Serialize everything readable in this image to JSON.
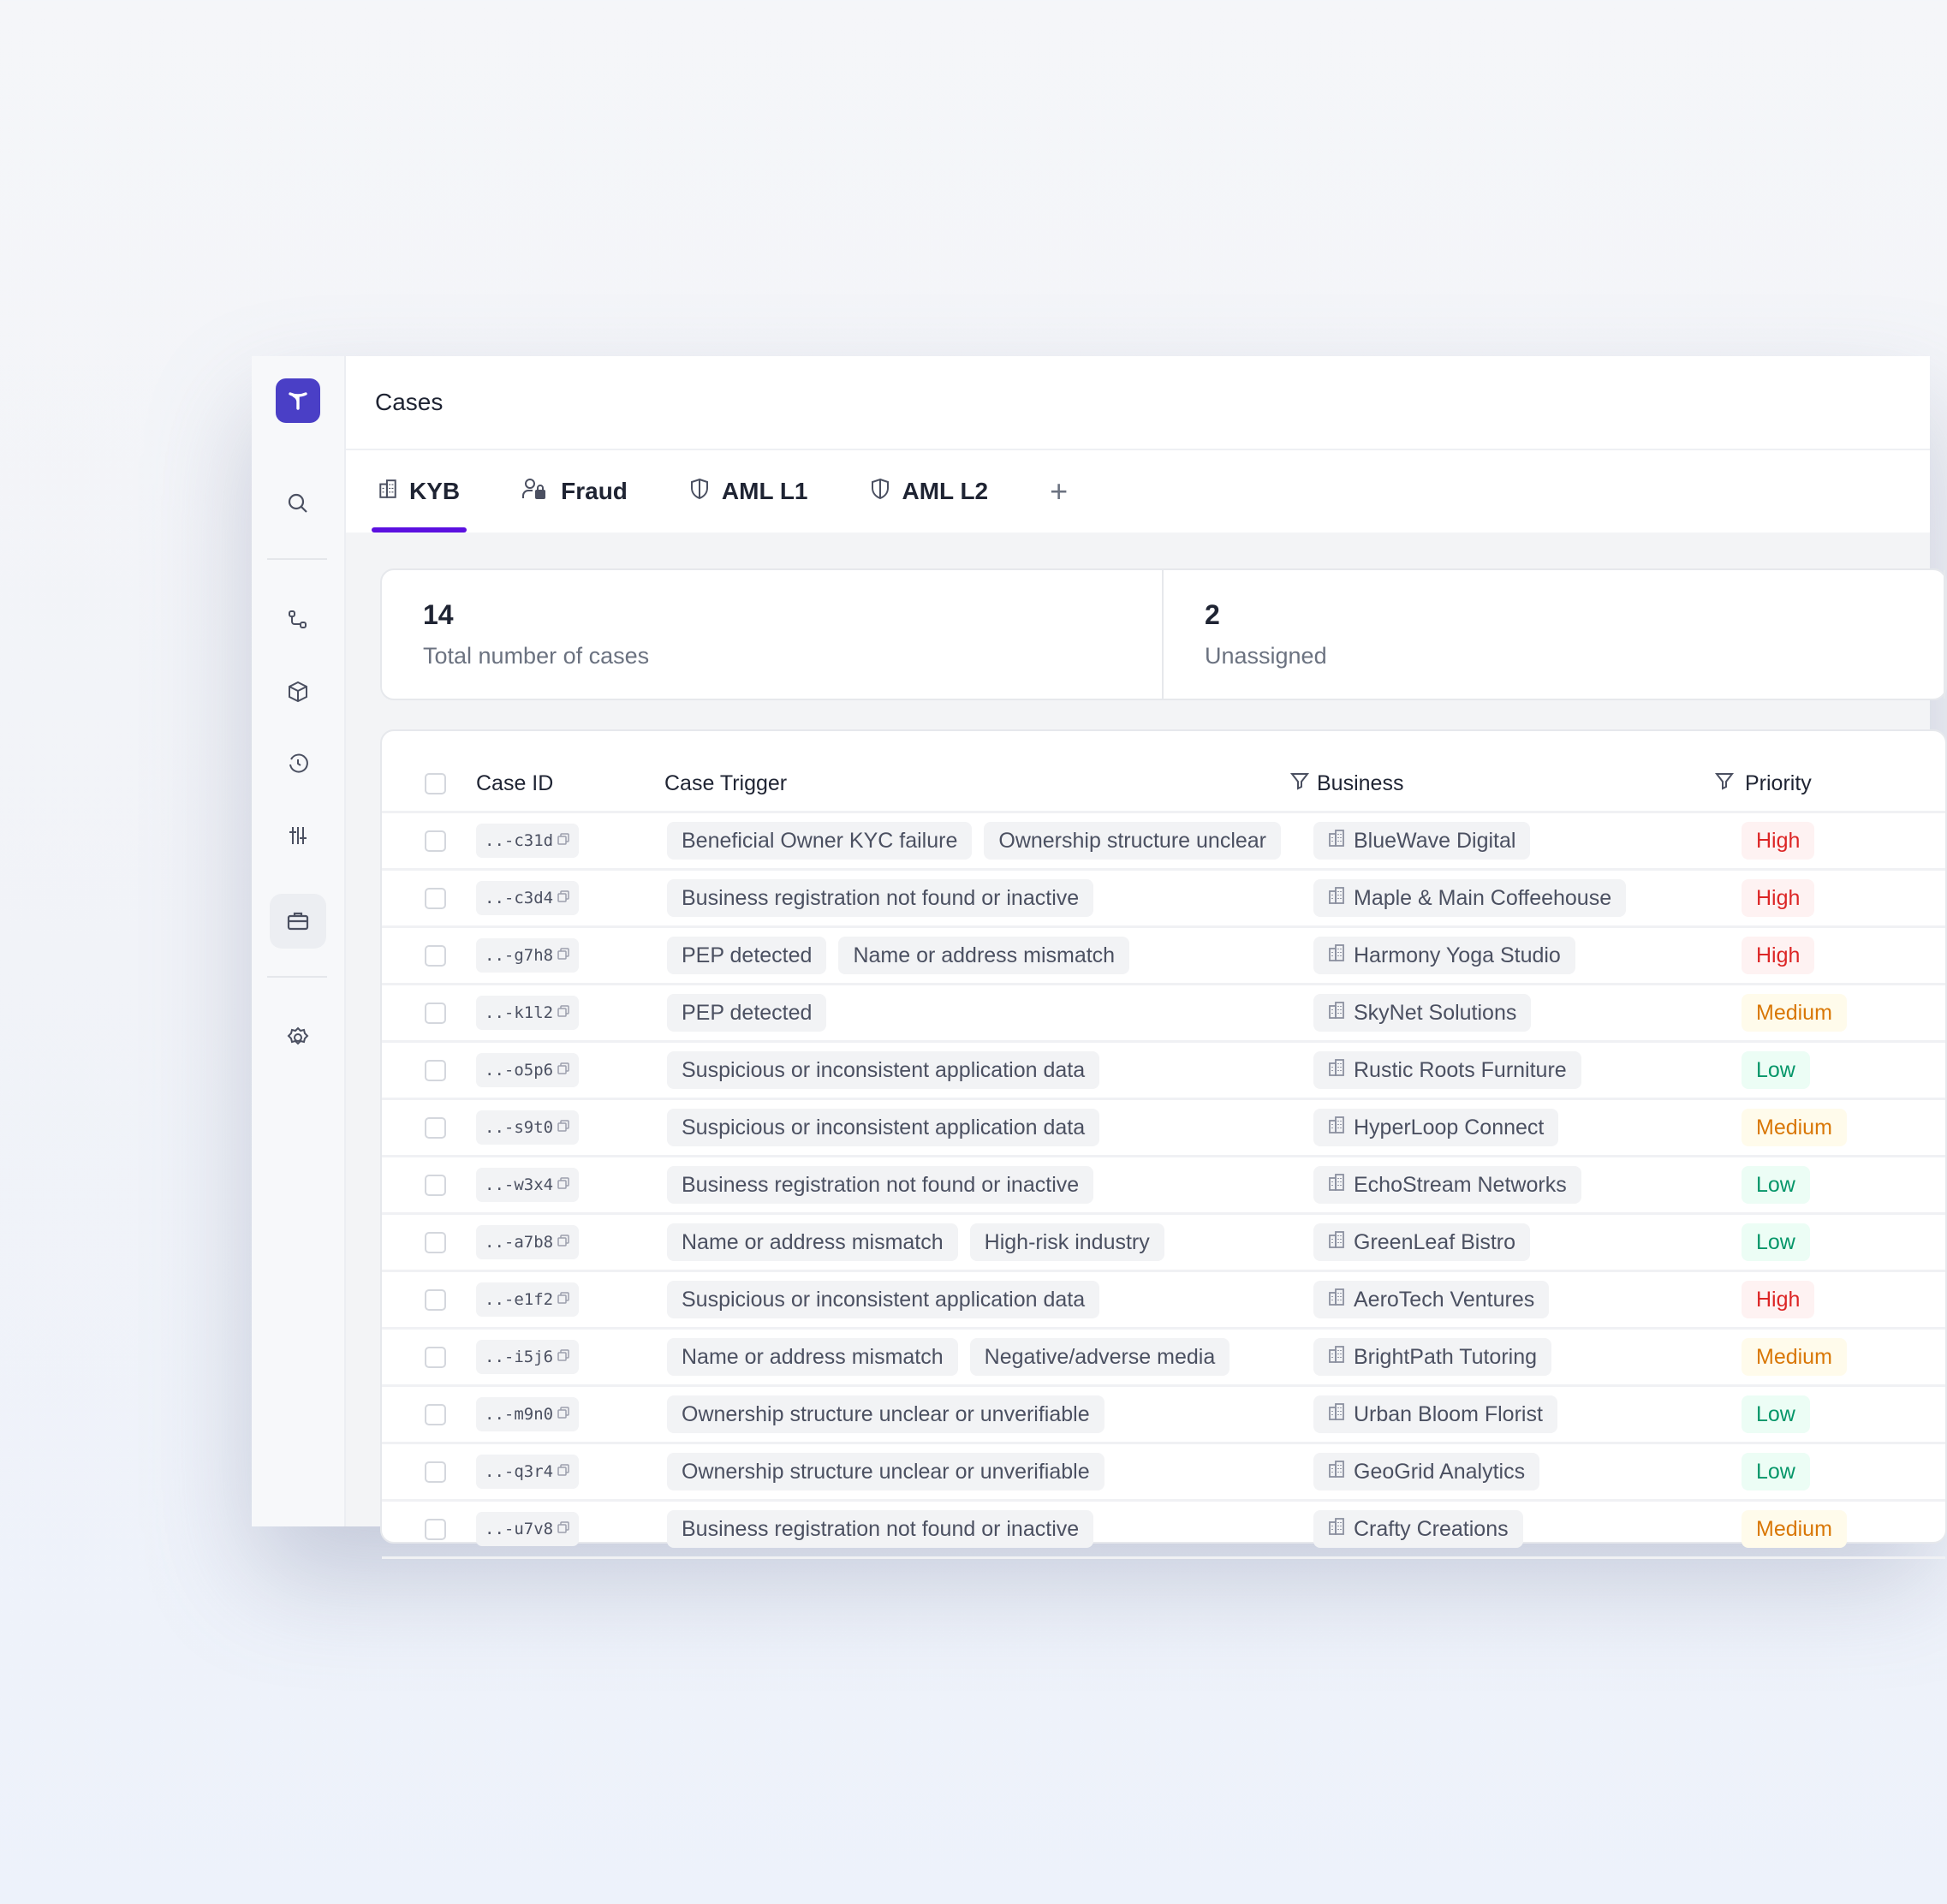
{
  "header": {
    "title": "Cases"
  },
  "tabs": [
    {
      "label": "KYB",
      "icon": "building-icon",
      "active": true
    },
    {
      "label": "Fraud",
      "icon": "user-lock-icon"
    },
    {
      "label": "AML L1",
      "icon": "shield-icon"
    },
    {
      "label": "AML L2",
      "icon": "shield-icon"
    }
  ],
  "add_tab": "+",
  "stats": [
    {
      "value": "14",
      "label": "Total number of cases"
    },
    {
      "value": "2",
      "label": "Unassigned"
    }
  ],
  "table": {
    "columns": [
      "Case ID",
      "Case Trigger",
      "Business",
      "Priority"
    ],
    "rows": [
      {
        "id": "..-c31d",
        "triggers": [
          "Beneficial Owner KYC failure",
          "Ownership structure unclear"
        ],
        "business": "BlueWave Digital",
        "priority": "High"
      },
      {
        "id": "..-c3d4",
        "triggers": [
          "Business registration not found or inactive"
        ],
        "business": "Maple & Main Coffeehouse",
        "priority": "High"
      },
      {
        "id": "..-g7h8",
        "triggers": [
          "PEP detected",
          "Name or address mismatch"
        ],
        "business": "Harmony Yoga Studio",
        "priority": "High"
      },
      {
        "id": "..-k1l2",
        "triggers": [
          "PEP detected"
        ],
        "business": "SkyNet Solutions",
        "priority": "Medium"
      },
      {
        "id": "..-o5p6",
        "triggers": [
          "Suspicious or inconsistent application data"
        ],
        "business": "Rustic Roots Furniture",
        "priority": "Low"
      },
      {
        "id": "..-s9t0",
        "triggers": [
          "Suspicious or inconsistent application data"
        ],
        "business": "HyperLoop Connect",
        "priority": "Medium"
      },
      {
        "id": "..-w3x4",
        "triggers": [
          "Business registration not found or inactive"
        ],
        "business": "EchoStream Networks",
        "priority": "Low"
      },
      {
        "id": "..-a7b8",
        "triggers": [
          "Name or address mismatch",
          "High-risk industry"
        ],
        "business": "GreenLeaf Bistro",
        "priority": "Low"
      },
      {
        "id": "..-e1f2",
        "triggers": [
          "Suspicious or inconsistent application data"
        ],
        "business": "AeroTech Ventures",
        "priority": "High"
      },
      {
        "id": "..-i5j6",
        "triggers": [
          "Name or address mismatch",
          "Negative/adverse media"
        ],
        "business": "BrightPath Tutoring",
        "priority": "Medium"
      },
      {
        "id": "..-m9n0",
        "triggers": [
          "Ownership structure unclear or unverifiable"
        ],
        "business": "Urban Bloom Florist",
        "priority": "Low"
      },
      {
        "id": "..-q3r4",
        "triggers": [
          "Ownership structure unclear or unverifiable"
        ],
        "business": "GeoGrid Analytics",
        "priority": "Low"
      },
      {
        "id": "..-u7v8",
        "triggers": [
          "Business registration not found or inactive"
        ],
        "business": "Crafty Creations",
        "priority": "Medium"
      }
    ]
  },
  "colors": {
    "accent": "#5b10e0",
    "logo": "#4a3fc6",
    "high": "#dc2626",
    "medium": "#d97706",
    "low": "#059669"
  }
}
